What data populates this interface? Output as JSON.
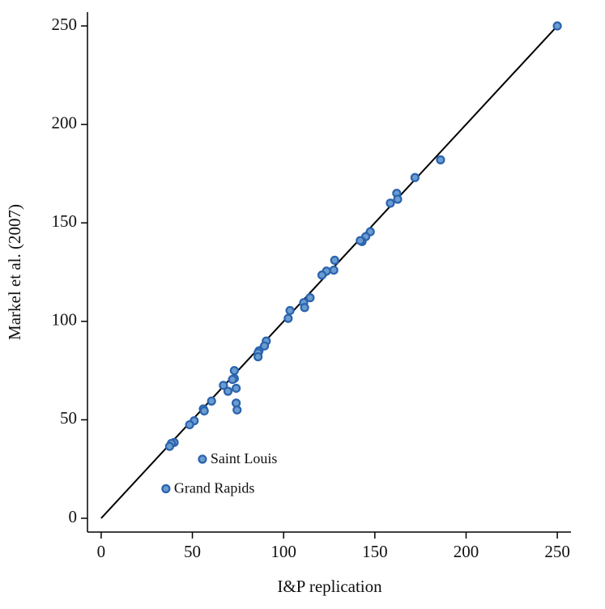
{
  "chart_data": {
    "type": "scatter",
    "x_label": "I&P replication",
    "y_label": "Markel et al. (2007)",
    "xlim": [
      -7.5,
      257.5
    ],
    "ylim": [
      -7,
      257
    ],
    "xticks": [
      0,
      50,
      100,
      150,
      200,
      250
    ],
    "yticks": [
      0,
      50,
      100,
      150,
      200,
      250
    ],
    "diagonal": {
      "from": 0,
      "to": 250,
      "color": "#000000"
    },
    "marker_fill": "#6a9bd1",
    "marker_edge": "#2a63ad",
    "series": [
      {
        "x": [
          250,
          186,
          172,
          162,
          162.5,
          158.5,
          147.5,
          145,
          143,
          142,
          128,
          127.5,
          123.5,
          121,
          114.5,
          111,
          111.5,
          103.5,
          102.5,
          90.5,
          89.5,
          86.5,
          86,
          86,
          73,
          73,
          72,
          74,
          67,
          69.5,
          74,
          74.5,
          60.5,
          56,
          56.5,
          51,
          48.5,
          40,
          38.5,
          37.5
        ],
        "values": [
          250,
          182,
          173,
          165,
          162,
          160,
          145.5,
          143,
          140.5,
          141,
          131,
          126,
          125.5,
          123.5,
          112,
          109.5,
          107,
          105.5,
          101.5,
          90,
          87.5,
          85,
          84,
          82,
          75,
          71,
          70.5,
          66,
          67.5,
          64.5,
          58.5,
          55,
          59.5,
          55.5,
          54.5,
          49.5,
          47.5,
          38.5,
          38,
          36.5
        ]
      }
    ],
    "annotations": [
      {
        "text": "Saint Louis",
        "x": 55.5,
        "y": 30
      },
      {
        "text": "Grand Rapids",
        "x": 35.5,
        "y": 15
      }
    ]
  }
}
